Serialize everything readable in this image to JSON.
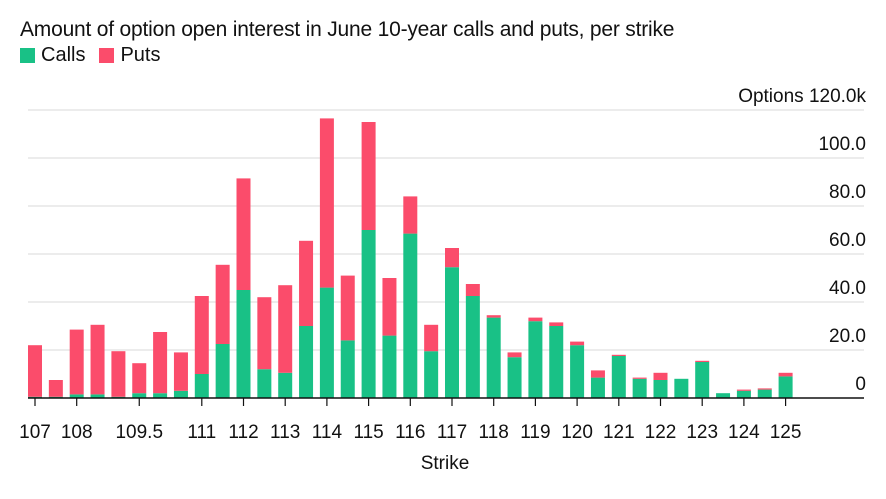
{
  "chart_data": {
    "type": "bar",
    "stacked": true,
    "title": "Amount of option open interest in June 10-year calls and puts, per strike",
    "xlabel": "Strike",
    "ylabel": "Options",
    "ylim": [
      0,
      120
    ],
    "y_ticks": [
      {
        "value": 0,
        "label": "0"
      },
      {
        "value": 20,
        "label": "20.0"
      },
      {
        "value": 40,
        "label": "40.0"
      },
      {
        "value": 60,
        "label": "60.0"
      },
      {
        "value": 80,
        "label": "80.0"
      },
      {
        "value": 100,
        "label": "100.0"
      },
      {
        "value": 120,
        "label": "Options 120.0k"
      }
    ],
    "x_tick_labels": [
      "107",
      "108",
      "109.5",
      "111",
      "112",
      "113",
      "114",
      "115",
      "116",
      "117",
      "118",
      "119",
      "120",
      "121",
      "122",
      "123",
      "124",
      "125"
    ],
    "x_tick_positions": [
      107,
      108,
      109.5,
      111,
      112,
      113,
      114,
      115,
      116,
      117,
      118,
      119,
      120,
      121,
      122,
      123,
      124,
      125
    ],
    "x": [
      107,
      107.5,
      108,
      108.5,
      109,
      109.5,
      110,
      110.5,
      111,
      111.5,
      112,
      112.5,
      113,
      113.5,
      114,
      114.5,
      115,
      115.5,
      116,
      116.5,
      117,
      117.5,
      118,
      118.5,
      119,
      119.5,
      120,
      120.5,
      121,
      121.5,
      122,
      122.5,
      123,
      123.5,
      124,
      124.5,
      125
    ],
    "series": [
      {
        "name": "Calls",
        "color": "#19c186",
        "values": [
          0.5,
          0.5,
          1.5,
          1.5,
          0.5,
          2,
          2,
          3,
          10,
          22.5,
          45,
          12,
          10.5,
          30,
          46,
          24,
          70,
          26,
          68.5,
          19.5,
          54.5,
          42.5,
          33.5,
          17,
          32,
          30,
          22,
          8.5,
          17.5,
          8,
          7.5,
          8,
          15,
          2,
          3,
          3.5,
          9
        ]
      },
      {
        "name": "Puts",
        "color": "#fb4c6b",
        "values": [
          21.5,
          7,
          27,
          29,
          19,
          12.5,
          25.5,
          16,
          32.5,
          33,
          46.5,
          30,
          36.5,
          35.5,
          70.5,
          27,
          45,
          24,
          15.5,
          11,
          8,
          5,
          1,
          2,
          1.5,
          1.5,
          1.5,
          3,
          0.5,
          0.5,
          3,
          0,
          0.5,
          0,
          0.5,
          0.5,
          1.5
        ]
      }
    ]
  }
}
